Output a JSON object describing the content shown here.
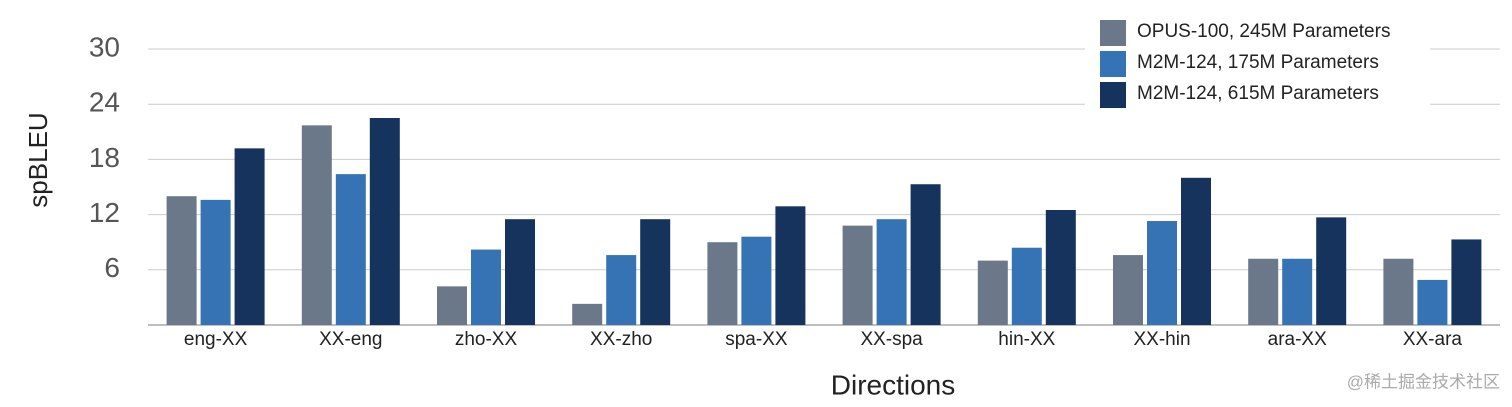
{
  "chart_data": {
    "type": "bar",
    "y_label": "spBLEU",
    "x_label": "Directions",
    "categories": [
      "eng-XX",
      "XX-eng",
      "zho-XX",
      "XX-zho",
      "spa-XX",
      "XX-spa",
      "hin-XX",
      "XX-hin",
      "ara-XX",
      "XX-ara"
    ],
    "series": [
      {
        "name": "OPUS-100, 245M Parameters",
        "color": "#6b7889",
        "values": [
          14.0,
          21.7,
          4.2,
          2.3,
          9.0,
          10.8,
          7.0,
          7.6,
          7.2,
          7.2
        ]
      },
      {
        "name": "M2M-124, 175M Parameters",
        "color": "#3573b5",
        "values": [
          13.6,
          16.4,
          8.2,
          7.6,
          9.6,
          11.5,
          8.4,
          11.3,
          7.2,
          4.9
        ]
      },
      {
        "name": "M2M-124, 615M Parameters",
        "color": "#16335e",
        "values": [
          19.2,
          22.5,
          11.5,
          11.5,
          12.9,
          15.3,
          12.5,
          16.0,
          11.7,
          9.3
        ]
      }
    ],
    "ylim": [
      0,
      30
    ],
    "yticks": [
      6,
      12,
      18,
      24,
      30
    ],
    "grid": true,
    "legend": "top-right",
    "watermark": "@稀土掘金技术社区"
  }
}
